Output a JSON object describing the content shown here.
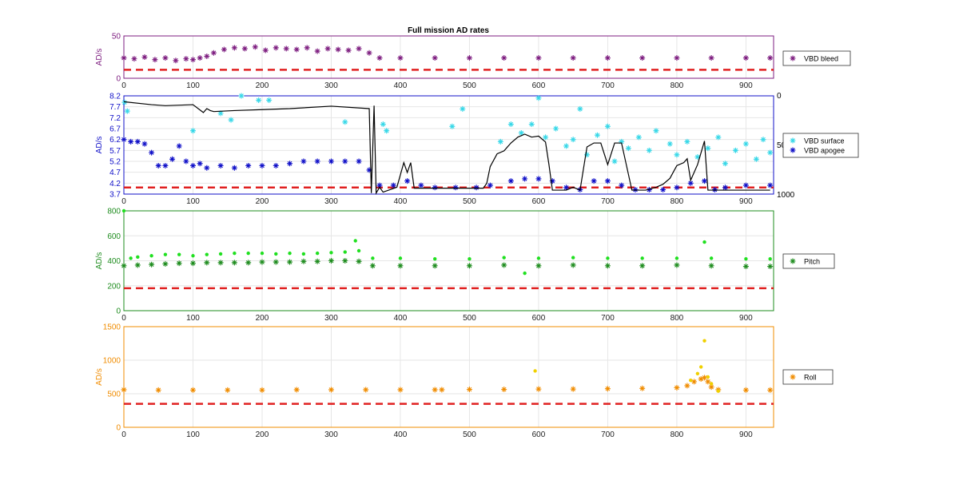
{
  "title": "Full mission AD rates",
  "chart_data": [
    {
      "type": "scatter",
      "color": "#7E1E80",
      "ylabel": "AD/s",
      "xlim": [
        0,
        940
      ],
      "ylim": [
        0,
        50
      ],
      "yticks": [
        0,
        50
      ],
      "xticks": [
        0,
        100,
        200,
        300,
        400,
        500,
        600,
        700,
        800,
        900
      ],
      "threshold": 10,
      "grid": true,
      "legend": [
        {
          "name": "VBD bleed",
          "color": "#7E1E80"
        }
      ],
      "series": [
        {
          "name": "VBD bleed",
          "color": "#7E1E80",
          "marker": "star",
          "x": [
            0,
            15,
            30,
            45,
            60,
            75,
            90,
            100,
            110,
            120,
            130,
            145,
            160,
            175,
            190,
            205,
            220,
            235,
            250,
            265,
            280,
            295,
            310,
            325,
            340,
            355,
            370,
            400,
            450,
            500,
            550,
            600,
            650,
            700,
            750,
            800,
            850,
            900,
            935
          ],
          "y": [
            24,
            23,
            25,
            22,
            24,
            21,
            23,
            22,
            24,
            26,
            30,
            34,
            36,
            35,
            37,
            33,
            36,
            35,
            34,
            36,
            32,
            35,
            34,
            33,
            35,
            30,
            24,
            24,
            24,
            24,
            24,
            24,
            24,
            24,
            24,
            24,
            24,
            24,
            24
          ]
        }
      ]
    },
    {
      "type": "scatter",
      "color": "#1010C8",
      "ylabel": "AD/s",
      "xlim": [
        0,
        940
      ],
      "ylim": [
        3.7,
        8.2
      ],
      "yticks": [
        3.7,
        4.2,
        4.7,
        5.2,
        5.7,
        6.2,
        6.7,
        7.2,
        7.7,
        8.2
      ],
      "y2lim": [
        0,
        1000
      ],
      "y2ticks_labels": [
        "0",
        "500",
        "1000"
      ],
      "xticks": [
        0,
        100,
        200,
        300,
        400,
        500,
        600,
        700,
        800,
        900
      ],
      "threshold": 4.0,
      "grid": true,
      "legend": [
        {
          "name": "VBD surface",
          "color": "#38D8E8"
        },
        {
          "name": "VBD apogee",
          "color": "#1010C8"
        }
      ],
      "series": [
        {
          "name": "VBD surface",
          "color": "#38D8E8",
          "marker": "star",
          "x": [
            1,
            5,
            100,
            140,
            155,
            170,
            195,
            210,
            320,
            375,
            380,
            475,
            490,
            545,
            560,
            575,
            590,
            600,
            610,
            625,
            640,
            650,
            660,
            670,
            685,
            700,
            710,
            720,
            730,
            745,
            760,
            770,
            790,
            800,
            815,
            830,
            845,
            860,
            870,
            885,
            900,
            915,
            925,
            935
          ],
          "y": [
            7.9,
            7.5,
            6.6,
            7.4,
            7.1,
            8.2,
            8.0,
            8.0,
            7.0,
            6.9,
            6.6,
            6.8,
            7.6,
            6.1,
            6.9,
            6.5,
            6.9,
            8.1,
            6.3,
            6.7,
            5.9,
            6.2,
            7.6,
            5.5,
            6.4,
            6.8,
            5.2,
            6.1,
            5.8,
            6.3,
            5.7,
            6.6,
            6.0,
            5.5,
            6.1,
            5.4,
            5.8,
            6.3,
            5.1,
            5.7,
            6.0,
            5.3,
            6.2,
            5.6
          ]
        },
        {
          "name": "VBD apogee",
          "color": "#1010C8",
          "marker": "star",
          "x": [
            0,
            10,
            20,
            30,
            40,
            50,
            60,
            70,
            80,
            90,
            100,
            110,
            120,
            140,
            160,
            180,
            200,
            220,
            240,
            260,
            280,
            300,
            320,
            340,
            355,
            370,
            390,
            410,
            430,
            450,
            480,
            510,
            530,
            560,
            580,
            600,
            620,
            640,
            660,
            680,
            700,
            720,
            740,
            760,
            780,
            800,
            820,
            840,
            855,
            870,
            900,
            935
          ],
          "y": [
            6.2,
            6.1,
            6.1,
            6.0,
            5.6,
            5.0,
            5.0,
            5.3,
            5.9,
            5.2,
            5.0,
            5.1,
            4.9,
            5.0,
            4.9,
            5.0,
            5.0,
            5.0,
            5.1,
            5.2,
            5.2,
            5.2,
            5.2,
            5.2,
            4.8,
            4.1,
            4.1,
            4.3,
            4.1,
            4.0,
            4.0,
            4.0,
            4.1,
            4.3,
            4.4,
            4.4,
            4.3,
            4.0,
            3.9,
            4.3,
            4.3,
            4.1,
            3.9,
            3.9,
            3.9,
            4.0,
            4.2,
            4.3,
            3.9,
            4.0,
            4.1,
            4.1
          ]
        },
        {
          "name": "",
          "color": "#000000",
          "marker": "line",
          "axis": "right",
          "x": [
            0,
            40,
            60,
            100,
            115,
            120,
            125,
            130,
            160,
            200,
            240,
            300,
            355,
            358,
            362,
            365,
            370,
            375,
            395,
            405,
            410,
            415,
            420,
            450,
            520,
            525,
            530,
            540,
            550,
            560,
            570,
            580,
            590,
            600,
            610,
            615,
            620,
            640,
            650,
            660,
            670,
            680,
            690,
            700,
            710,
            720,
            735,
            745,
            755,
            770,
            780,
            790,
            800,
            810,
            815,
            820,
            830,
            840,
            845,
            850,
            855,
            900,
            935
          ],
          "y": [
            60,
            90,
            100,
            90,
            170,
            130,
            150,
            160,
            150,
            140,
            130,
            105,
            130,
            990,
            100,
            990,
            930,
            980,
            930,
            680,
            780,
            680,
            940,
            940,
            940,
            890,
            720,
            590,
            560,
            480,
            420,
            390,
            420,
            410,
            470,
            700,
            960,
            960,
            930,
            960,
            520,
            480,
            480,
            700,
            480,
            480,
            960,
            960,
            960,
            930,
            900,
            840,
            710,
            680,
            640,
            860,
            700,
            460,
            960,
            960,
            960,
            960,
            960
          ]
        }
      ]
    },
    {
      "type": "scatter",
      "color": "#1E8C1E",
      "ylabel": "AD/s",
      "xlim": [
        0,
        940
      ],
      "ylim": [
        0,
        800
      ],
      "yticks": [
        0,
        200,
        400,
        600,
        800
      ],
      "xticks": [
        0,
        100,
        200,
        300,
        400,
        500,
        600,
        700,
        800,
        900
      ],
      "threshold": 180,
      "grid": true,
      "legend": [
        {
          "name": "Pitch",
          "color": "#1E8C1E"
        }
      ],
      "series": [
        {
          "name": "Pitch",
          "color": "#1E8C1E",
          "marker": "star",
          "x": [
            0,
            20,
            40,
            60,
            80,
            100,
            120,
            140,
            160,
            180,
            200,
            220,
            240,
            260,
            280,
            300,
            320,
            340,
            360,
            400,
            450,
            500,
            550,
            600,
            650,
            700,
            750,
            800,
            850,
            900,
            935
          ],
          "y": [
            360,
            365,
            370,
            375,
            380,
            380,
            385,
            385,
            385,
            385,
            390,
            390,
            390,
            395,
            395,
            400,
            400,
            395,
            360,
            360,
            360,
            360,
            365,
            360,
            365,
            360,
            360,
            365,
            360,
            355,
            355
          ]
        },
        {
          "name": "",
          "color": "#20E020",
          "marker": "dot",
          "x": [
            0,
            10,
            20,
            40,
            60,
            80,
            100,
            120,
            140,
            160,
            180,
            200,
            220,
            240,
            260,
            280,
            300,
            320,
            335,
            340,
            360,
            400,
            450,
            500,
            550,
            580,
            600,
            650,
            700,
            750,
            800,
            840,
            850,
            900,
            935
          ],
          "y": [
            800,
            420,
            430,
            440,
            450,
            450,
            440,
            450,
            455,
            460,
            460,
            460,
            455,
            460,
            455,
            460,
            465,
            470,
            560,
            480,
            420,
            420,
            415,
            415,
            425,
            300,
            420,
            425,
            420,
            420,
            420,
            550,
            420,
            415,
            415
          ]
        }
      ]
    },
    {
      "type": "scatter",
      "color": "#F08C00",
      "ylabel": "AD/s",
      "xlim": [
        0,
        940
      ],
      "ylim": [
        0,
        1500
      ],
      "yticks": [
        0,
        500,
        1000,
        1500
      ],
      "xticks": [
        0,
        100,
        200,
        300,
        400,
        500,
        600,
        700,
        800,
        900
      ],
      "threshold": 350,
      "grid": true,
      "legend": [
        {
          "name": "Roll",
          "color": "#F08C00"
        }
      ],
      "series": [
        {
          "name": "Roll",
          "color": "#F08C00",
          "marker": "star",
          "x": [
            0,
            50,
            100,
            150,
            200,
            250,
            300,
            350,
            400,
            450,
            460,
            500,
            550,
            600,
            650,
            700,
            750,
            800,
            815,
            825,
            835,
            840,
            845,
            850,
            860,
            900,
            935
          ],
          "y": [
            560,
            555,
            555,
            555,
            555,
            560,
            560,
            560,
            560,
            560,
            560,
            565,
            565,
            570,
            570,
            575,
            580,
            590,
            620,
            680,
            720,
            740,
            680,
            600,
            560,
            555,
            555
          ]
        },
        {
          "name": "",
          "color": "#F0D000",
          "marker": "dot",
          "x": [
            595,
            820,
            830,
            835,
            840,
            845,
            850,
            860
          ],
          "y": [
            840,
            700,
            800,
            900,
            1290,
            750,
            650,
            540
          ]
        }
      ]
    }
  ]
}
